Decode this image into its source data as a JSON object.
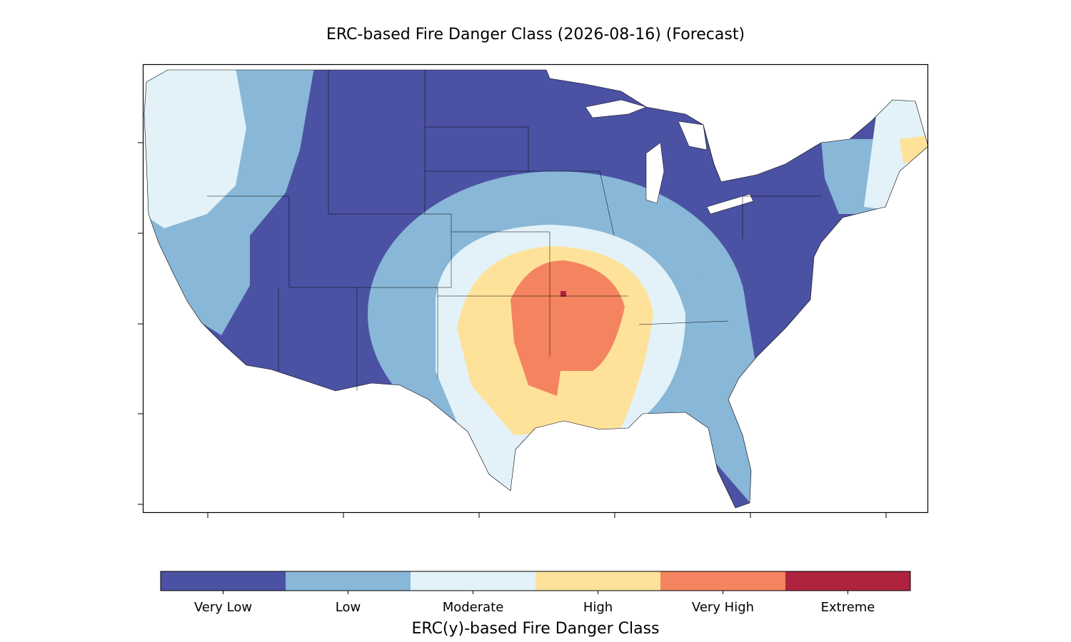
{
  "title": "ERC-based Fire Danger Class (2026-08-16) (Forecast)",
  "colorbar": {
    "label": "ERC(y)-based Fire Danger Class",
    "classes": [
      {
        "label": "Very Low",
        "color": "#4b52a3"
      },
      {
        "label": "Low",
        "color": "#89b7d7"
      },
      {
        "label": "Moderate",
        "color": "#e3f2f8"
      },
      {
        "label": "High",
        "color": "#fee29a"
      },
      {
        "label": "Very High",
        "color": "#f4845f"
      },
      {
        "label": "Extreme",
        "color": "#b0233f"
      }
    ]
  }
}
